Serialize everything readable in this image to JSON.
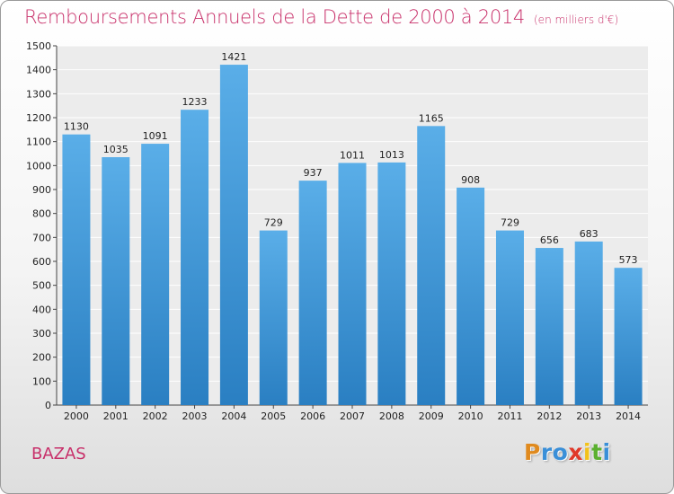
{
  "chart_data": {
    "type": "bar",
    "title": "Remboursements Annuels de la Dette de 2000 à 2014",
    "unit_note": "(en milliers d'€)",
    "categories": [
      "2000",
      "2001",
      "2002",
      "2003",
      "2004",
      "2005",
      "2006",
      "2007",
      "2008",
      "2009",
      "2010",
      "2011",
      "2012",
      "2013",
      "2014"
    ],
    "values": [
      1130,
      1035,
      1091,
      1233,
      1421,
      729,
      937,
      1011,
      1013,
      1165,
      908,
      729,
      656,
      683,
      573
    ],
    "ylim": [
      0,
      1500
    ],
    "yticks": [
      0,
      100,
      200,
      300,
      400,
      500,
      600,
      700,
      800,
      900,
      1000,
      1100,
      1200,
      1300,
      1400,
      1500
    ],
    "grid": true,
    "bar_color_top": "#5aaee8",
    "bar_color_bottom": "#2a7fc2"
  },
  "place_name": "BAZAS",
  "logo": {
    "letters": [
      "P",
      "r",
      "o",
      "x",
      "i",
      "t",
      "i"
    ],
    "colors": [
      "#e08a1e",
      "#3a8fd8",
      "#3a8fd8",
      "#e0392a",
      "#f2c21a",
      "#5bb030",
      "#3a8fd8"
    ]
  },
  "title_color": "#c8306a"
}
